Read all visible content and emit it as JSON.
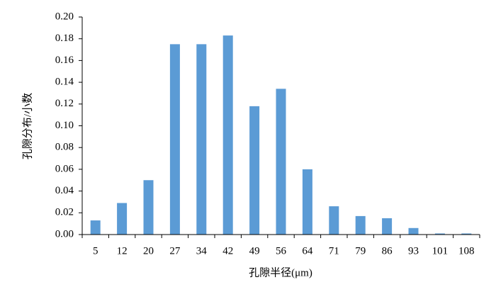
{
  "chart_data": {
    "type": "bar",
    "x_label": "孔隙半径(μm)",
    "y_label": "孔隙分布/小数",
    "categories": [
      "5",
      "12",
      "20",
      "27",
      "34",
      "42",
      "49",
      "56",
      "64",
      "71",
      "79",
      "86",
      "93",
      "101",
      "108"
    ],
    "values": [
      0.013,
      0.029,
      0.05,
      0.175,
      0.175,
      0.183,
      0.118,
      0.134,
      0.06,
      0.026,
      0.017,
      0.015,
      0.006,
      0.001,
      0.001
    ],
    "color": "#5b9bd5",
    "ylim": [
      0,
      0.2
    ],
    "yticks": [
      {
        "value": 0,
        "label": "0.00"
      },
      {
        "value": 0.02,
        "label": "0.02"
      },
      {
        "value": 0.04,
        "label": "0.04"
      },
      {
        "value": 0.06,
        "label": "0.06"
      },
      {
        "value": 0.08,
        "label": "0.08"
      },
      {
        "value": 0.1,
        "label": "0.10"
      },
      {
        "value": 0.12,
        "label": "0.12"
      },
      {
        "value": 0.14,
        "label": "0.14"
      },
      {
        "value": 0.16,
        "label": "0.16"
      },
      {
        "value": 0.18,
        "label": "0.18"
      },
      {
        "value": 0.2,
        "label": "0.20"
      }
    ],
    "grid": false
  }
}
